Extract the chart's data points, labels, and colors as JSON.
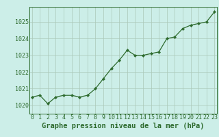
{
  "x": [
    0,
    1,
    2,
    3,
    4,
    5,
    6,
    7,
    8,
    9,
    10,
    11,
    12,
    13,
    14,
    15,
    16,
    17,
    18,
    19,
    20,
    21,
    22,
    23
  ],
  "y": [
    1020.5,
    1020.6,
    1020.1,
    1020.5,
    1020.6,
    1020.6,
    1020.5,
    1020.6,
    1021.0,
    1021.6,
    1022.2,
    1022.7,
    1023.3,
    1023.0,
    1023.0,
    1023.1,
    1023.2,
    1024.0,
    1024.1,
    1024.6,
    1024.8,
    1024.9,
    1025.0,
    1025.6
  ],
  "line_color": "#2d6a2d",
  "marker": "D",
  "marker_size": 2.2,
  "bg_color": "#cceee8",
  "grid_color": "#aac8b8",
  "title": "Graphe pression niveau de la mer (hPa)",
  "ylim": [
    1019.5,
    1025.9
  ],
  "yticks": [
    1020,
    1021,
    1022,
    1023,
    1024,
    1025
  ],
  "xticks": [
    0,
    1,
    2,
    3,
    4,
    5,
    6,
    7,
    8,
    9,
    10,
    11,
    12,
    13,
    14,
    15,
    16,
    17,
    18,
    19,
    20,
    21,
    22,
    23
  ],
  "title_fontsize": 7.5,
  "tick_fontsize": 6.0,
  "title_fontweight": "bold",
  "line_width": 0.9
}
